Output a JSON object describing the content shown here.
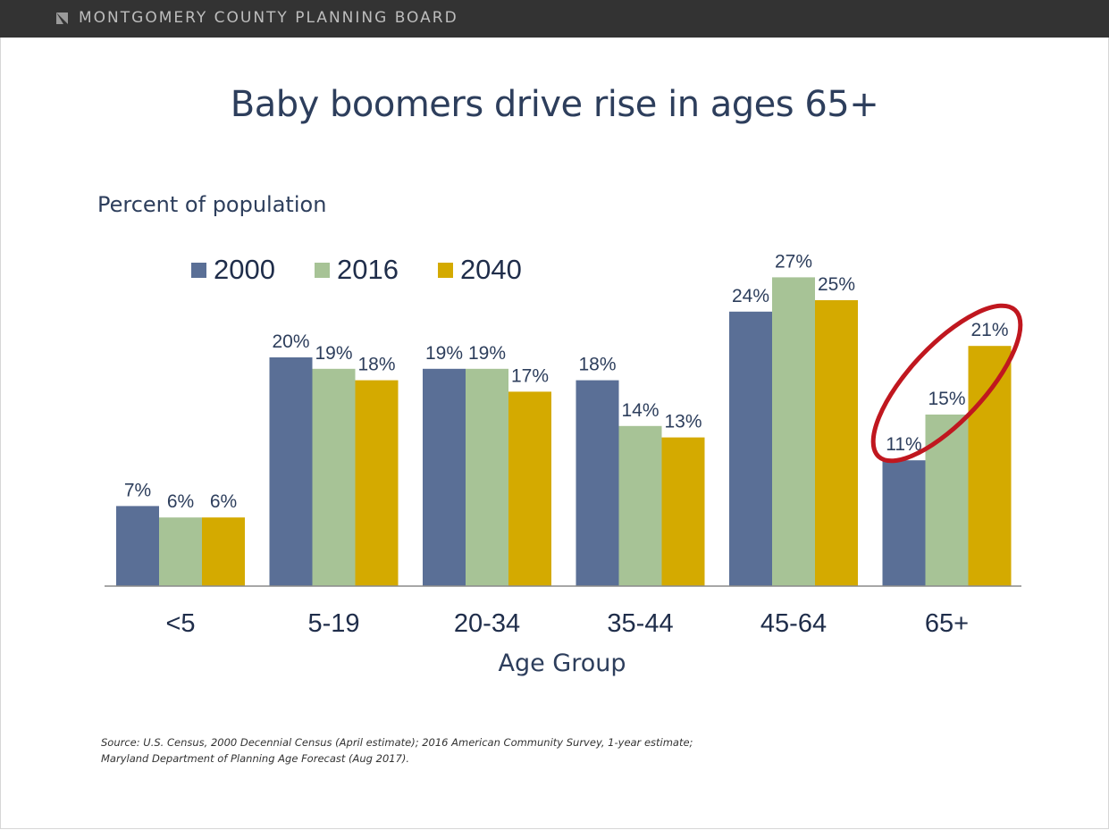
{
  "header": {
    "organization": "MONTGOMERY COUNTY PLANNING BOARD",
    "logo_icon": "planning-board-logo-icon"
  },
  "slide": {
    "title": "Baby boomers drive rise in ages 65+"
  },
  "source": {
    "line1": "Source: U.S. Census, 2000  Decennial Census (April estimate); 2016 American Community Survey, 1-year estimate;",
    "line2": "Maryland Department of Planning Age Forecast (Aug 2017)."
  },
  "colors": {
    "series_2000": "#5a6f96",
    "series_2016": "#a7c396",
    "series_2040": "#d4aa00",
    "highlight_ellipse": "#c0171f",
    "text_dark": "#2d3e5c",
    "header_bg": "#333333"
  },
  "chart_data": {
    "type": "bar",
    "title": "",
    "ylabel": "Percent of population",
    "xlabel": "Age Group",
    "categories": [
      "<5",
      "5-19",
      "20-34",
      "35-44",
      "45-64",
      "65+"
    ],
    "series": [
      {
        "name": "2000",
        "values": [
          7,
          20,
          19,
          18,
          24,
          11
        ]
      },
      {
        "name": "2016",
        "values": [
          6,
          19,
          19,
          14,
          27,
          15
        ]
      },
      {
        "name": "2040",
        "values": [
          6,
          18,
          17,
          13,
          25,
          21
        ]
      }
    ],
    "value_suffix": "%",
    "ylim": [
      0,
      27
    ],
    "grid": false,
    "legend_position": "top-left",
    "highlight": {
      "category": "65+",
      "shape": "ellipse"
    }
  }
}
